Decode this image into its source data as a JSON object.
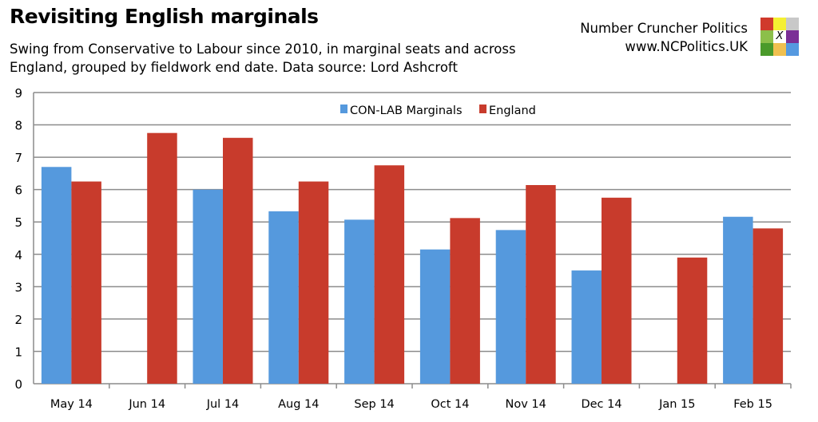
{
  "header": {
    "title": "Revisiting English marginals",
    "subtitle": "Swing from Conservative to Labour since 2010, in marginal seats and across England, grouped by fieldwork end date. Data source: Lord Ashcroft",
    "brand_name": "Number Cruncher Politics",
    "brand_url": "www.NCPolitics.UK",
    "logo_letter": "X",
    "logo_colors": [
      "#d03a2c",
      "#f5f032",
      "#c8c8c8",
      "#8cbf4a",
      "#ffffff",
      "#7b2f96",
      "#4a9a2a",
      "#f0c050",
      "#5599e0"
    ]
  },
  "chart_data": {
    "type": "bar",
    "title": "",
    "xlabel": "",
    "ylabel": "",
    "ylim": [
      0,
      9
    ],
    "yticks": [
      0,
      1,
      2,
      3,
      4,
      5,
      6,
      7,
      8,
      9
    ],
    "grid": true,
    "legend_position": "top-center",
    "categories": [
      "May 14",
      "Jun 14",
      "Jul 14",
      "Aug 14",
      "Sep 14",
      "Oct 14",
      "Nov 14",
      "Dec 14",
      "Jan 15",
      "Feb 15"
    ],
    "series": [
      {
        "name": "CON-LAB Marginals",
        "color": "#5599dd",
        "values": [
          6.7,
          null,
          6.0,
          5.33,
          5.07,
          4.15,
          4.75,
          3.5,
          null,
          5.16
        ]
      },
      {
        "name": "England",
        "color": "#c83b2c",
        "values": [
          6.25,
          7.75,
          7.6,
          6.25,
          6.75,
          5.12,
          6.14,
          5.75,
          3.9,
          4.8
        ]
      }
    ]
  }
}
